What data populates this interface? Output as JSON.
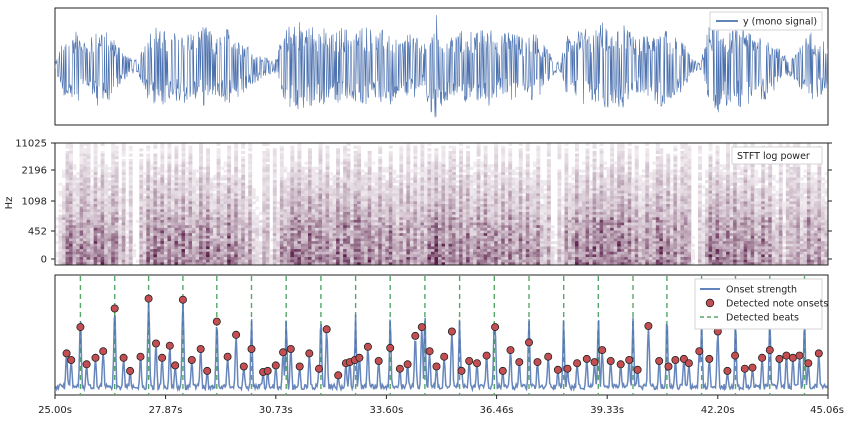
{
  "chart_data": [
    {
      "type": "line",
      "panel": "waveform",
      "legend": [
        "y (mono signal)"
      ],
      "legend_position": "top-right",
      "color": "#4c72b0",
      "envelope": [
        [
          25.0,
          0.05
        ],
        [
          25.25,
          0.55
        ],
        [
          25.55,
          0.65
        ],
        [
          25.85,
          0.4
        ],
        [
          26.1,
          0.72
        ],
        [
          26.4,
          0.6
        ],
        [
          26.7,
          0.35
        ],
        [
          26.95,
          0.15
        ],
        [
          27.15,
          0.1
        ],
        [
          27.4,
          0.62
        ],
        [
          27.7,
          0.75
        ],
        [
          28.0,
          0.55
        ],
        [
          28.3,
          0.7
        ],
        [
          28.6,
          0.58
        ],
        [
          28.9,
          0.72
        ],
        [
          29.2,
          0.5
        ],
        [
          29.5,
          0.7
        ],
        [
          29.8,
          0.55
        ],
        [
          30.1,
          0.35
        ],
        [
          30.4,
          0.18
        ],
        [
          30.7,
          0.12
        ],
        [
          30.95,
          0.6
        ],
        [
          31.25,
          0.88
        ],
        [
          31.55,
          0.7
        ],
        [
          31.85,
          0.78
        ],
        [
          32.15,
          0.55
        ],
        [
          32.45,
          0.7
        ],
        [
          32.75,
          0.62
        ],
        [
          33.05,
          0.75
        ],
        [
          33.35,
          0.58
        ],
        [
          33.65,
          0.72
        ],
        [
          33.95,
          0.45
        ],
        [
          34.25,
          0.6
        ],
        [
          34.55,
          0.4
        ],
        [
          34.85,
          0.98
        ],
        [
          35.1,
          0.65
        ],
        [
          35.35,
          0.55
        ],
        [
          35.65,
          0.68
        ],
        [
          35.95,
          0.6
        ],
        [
          36.25,
          0.72
        ],
        [
          36.55,
          0.55
        ],
        [
          36.85,
          0.66
        ],
        [
          37.15,
          0.5
        ],
        [
          37.45,
          0.62
        ],
        [
          37.75,
          0.35
        ],
        [
          37.95,
          0.15
        ],
        [
          38.1,
          0.08
        ],
        [
          38.3,
          0.55
        ],
        [
          38.6,
          0.72
        ],
        [
          38.9,
          0.62
        ],
        [
          39.2,
          0.8
        ],
        [
          39.5,
          0.68
        ],
        [
          39.8,
          0.75
        ],
        [
          40.1,
          0.45
        ],
        [
          40.4,
          0.62
        ],
        [
          40.7,
          0.72
        ],
        [
          41.0,
          0.55
        ],
        [
          41.3,
          0.45
        ],
        [
          41.55,
          0.12
        ],
        [
          41.75,
          0.05
        ],
        [
          41.95,
          0.7
        ],
        [
          42.25,
          0.82
        ],
        [
          42.55,
          0.62
        ],
        [
          42.85,
          0.75
        ],
        [
          43.15,
          0.55
        ],
        [
          43.45,
          0.6
        ],
        [
          43.75,
          0.35
        ],
        [
          44.05,
          0.15
        ],
        [
          44.3,
          0.35
        ],
        [
          44.6,
          0.62
        ],
        [
          44.85,
          0.55
        ],
        [
          45.06,
          0.4
        ]
      ]
    },
    {
      "type": "heatmap",
      "panel": "spectrogram",
      "legend": [
        "STFT log power"
      ],
      "legend_position": "top-right",
      "ylabel": "Hz",
      "yticks": [
        "0",
        "452",
        "1098",
        "2196",
        "11025"
      ],
      "colormap_low": "#ffffff",
      "colormap_high": "#5a1f4a"
    },
    {
      "type": "line",
      "panel": "onsets",
      "xlim": [
        25.0,
        45.06
      ],
      "xticks": [
        "25.00s",
        "27.87s",
        "30.73s",
        "33.60s",
        "36.46s",
        "39.33s",
        "42.20s",
        "45.06s"
      ],
      "xtick_values": [
        25.0,
        27.87,
        30.73,
        33.6,
        36.46,
        39.33,
        42.2,
        45.06
      ],
      "ylim": [
        0,
        1.05
      ],
      "legend_position": "top-right",
      "series": [
        {
          "name": "Onset strength",
          "color": "#4c72b0"
        },
        {
          "name": "Detected note onsets",
          "color": "#c44e52"
        },
        {
          "name": "Detected beats",
          "color": "#55a868"
        }
      ],
      "beats": [
        25.66,
        26.55,
        27.43,
        28.32,
        29.2,
        30.1,
        31.0,
        31.9,
        32.8,
        33.7,
        34.6,
        35.5,
        36.4,
        37.3,
        38.2,
        39.1,
        40.0,
        40.88,
        41.78,
        42.66,
        43.55,
        44.45
      ],
      "onsets": [
        [
          25.3,
          0.38
        ],
        [
          25.42,
          0.32
        ],
        [
          25.66,
          0.62
        ],
        [
          25.82,
          0.28
        ],
        [
          26.05,
          0.34
        ],
        [
          26.25,
          0.4
        ],
        [
          26.55,
          0.79
        ],
        [
          26.78,
          0.34
        ],
        [
          26.95,
          0.22
        ],
        [
          27.22,
          0.35
        ],
        [
          27.43,
          0.88
        ],
        [
          27.62,
          0.47
        ],
        [
          27.78,
          0.34
        ],
        [
          27.98,
          0.45
        ],
        [
          28.12,
          0.27
        ],
        [
          28.32,
          0.87
        ],
        [
          28.55,
          0.32
        ],
        [
          28.78,
          0.42
        ],
        [
          28.95,
          0.22
        ],
        [
          29.2,
          0.67
        ],
        [
          29.48,
          0.35
        ],
        [
          29.7,
          0.55
        ],
        [
          29.9,
          0.26
        ],
        [
          30.1,
          0.42
        ],
        [
          30.4,
          0.21
        ],
        [
          30.52,
          0.22
        ],
        [
          30.73,
          0.27
        ],
        [
          30.92,
          0.39
        ],
        [
          31.12,
          0.42
        ],
        [
          31.35,
          0.26
        ],
        [
          31.6,
          0.38
        ],
        [
          31.85,
          0.24
        ],
        [
          32.05,
          0.6
        ],
        [
          32.35,
          0.18
        ],
        [
          32.55,
          0.29
        ],
        [
          32.65,
          0.3
        ],
        [
          32.78,
          0.32
        ],
        [
          32.9,
          0.34
        ],
        [
          33.12,
          0.44
        ],
        [
          33.4,
          0.31
        ],
        [
          33.7,
          0.43
        ],
        [
          33.95,
          0.24
        ],
        [
          34.15,
          0.28
        ],
        [
          34.35,
          0.54
        ],
        [
          34.52,
          0.62
        ],
        [
          34.72,
          0.4
        ],
        [
          34.9,
          0.26
        ],
        [
          35.1,
          0.35
        ],
        [
          35.3,
          0.58
        ],
        [
          35.55,
          0.22
        ],
        [
          35.75,
          0.31
        ],
        [
          35.95,
          0.29
        ],
        [
          36.2,
          0.36
        ],
        [
          36.42,
          0.62
        ],
        [
          36.62,
          0.22
        ],
        [
          36.82,
          0.41
        ],
        [
          37.05,
          0.3
        ],
        [
          37.3,
          0.48
        ],
        [
          37.52,
          0.3
        ],
        [
          37.8,
          0.35
        ],
        [
          38.05,
          0.23
        ],
        [
          38.3,
          0.24
        ],
        [
          38.55,
          0.29
        ],
        [
          38.8,
          0.33
        ],
        [
          39.0,
          0.3
        ],
        [
          39.2,
          0.41
        ],
        [
          39.42,
          0.31
        ],
        [
          39.68,
          0.28
        ],
        [
          39.9,
          0.32
        ],
        [
          40.12,
          0.23
        ],
        [
          40.4,
          0.63
        ],
        [
          40.68,
          0.31
        ],
        [
          40.92,
          0.26
        ],
        [
          41.1,
          0.32
        ],
        [
          41.32,
          0.33
        ],
        [
          41.45,
          0.29
        ],
        [
          41.72,
          0.4
        ],
        [
          41.98,
          0.33
        ],
        [
          42.2,
          0.58
        ],
        [
          42.45,
          0.22
        ],
        [
          42.65,
          0.36
        ],
        [
          42.9,
          0.24
        ],
        [
          43.1,
          0.25
        ],
        [
          43.35,
          0.34
        ],
        [
          43.55,
          0.41
        ],
        [
          43.8,
          0.33
        ],
        [
          43.98,
          0.36
        ],
        [
          44.15,
          0.34
        ],
        [
          44.32,
          0.36
        ],
        [
          44.55,
          0.29
        ],
        [
          44.82,
          0.38
        ]
      ]
    }
  ]
}
